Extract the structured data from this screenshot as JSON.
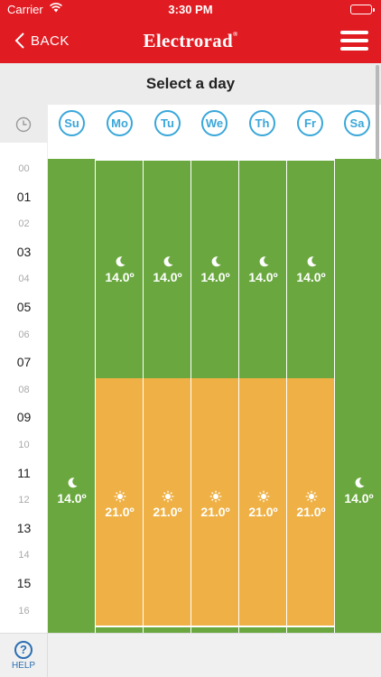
{
  "status_bar": {
    "carrier": "Carrier",
    "time": "3:30 PM"
  },
  "nav": {
    "back_label": "BACK",
    "logo_text": "Electrorad",
    "logo_mark": "®"
  },
  "title": "Select a day",
  "days": [
    {
      "label": "Su"
    },
    {
      "label": "Mo"
    },
    {
      "label": "Tu"
    },
    {
      "label": "We"
    },
    {
      "label": "Th"
    },
    {
      "label": "Fr"
    },
    {
      "label": "Sa"
    }
  ],
  "hours": [
    {
      "label": "00",
      "major": false
    },
    {
      "label": "01",
      "major": true
    },
    {
      "label": "02",
      "major": false
    },
    {
      "label": "03",
      "major": true
    },
    {
      "label": "04",
      "major": false
    },
    {
      "label": "05",
      "major": true
    },
    {
      "label": "06",
      "major": false
    },
    {
      "label": "07",
      "major": true
    },
    {
      "label": "08",
      "major": false
    },
    {
      "label": "09",
      "major": true
    },
    {
      "label": "10",
      "major": false
    },
    {
      "label": "11",
      "major": true
    },
    {
      "label": "12",
      "major": false
    },
    {
      "label": "13",
      "major": true
    },
    {
      "label": "14",
      "major": false
    },
    {
      "label": "15",
      "major": true
    },
    {
      "label": "16",
      "major": false
    }
  ],
  "schedule": {
    "weekend": [
      {
        "mode": "night",
        "temp": "14.0º"
      }
    ],
    "weekday": [
      {
        "mode": "night",
        "start_hour": 0,
        "end_hour": 8,
        "temp": "14.0º"
      },
      {
        "mode": "day",
        "start_hour": 8,
        "end_hour": 17,
        "temp": "21.0º"
      }
    ]
  },
  "help_label": "HELP",
  "help_symbol": "?",
  "colors": {
    "brand_red": "#e11b22",
    "night_green": "#6aa83f",
    "day_orange": "#efb145",
    "day_circle_blue": "#3aa7d9",
    "help_blue": "#2b6fb3"
  },
  "icons": {
    "night": "moon-icon",
    "day": "sun-icon",
    "clock": "clock-icon",
    "back": "chevron-left-icon",
    "menu": "hamburger-menu-icon",
    "help": "help-circle-icon"
  }
}
